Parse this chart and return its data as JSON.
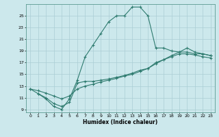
{
  "xlabel": "Humidex (Indice chaleur)",
  "background_color": "#cce8ec",
  "grid_color": "#aacdd4",
  "line_color": "#2d7a6e",
  "xlim": [
    -0.5,
    23.5
  ],
  "ylim": [
    8.5,
    27.0
  ],
  "yticks": [
    9,
    11,
    13,
    15,
    17,
    19,
    21,
    23,
    25
  ],
  "xticks": [
    0,
    1,
    2,
    3,
    4,
    5,
    6,
    7,
    8,
    9,
    10,
    11,
    12,
    13,
    14,
    15,
    16,
    17,
    18,
    19,
    20,
    21,
    22,
    23
  ],
  "line1_x": [
    0,
    1,
    2,
    3,
    4,
    5,
    6,
    7,
    8,
    9,
    10,
    11,
    12,
    13,
    14,
    15,
    16,
    17,
    18,
    19,
    20,
    21,
    22,
    23
  ],
  "line1_y": [
    12.5,
    11.7,
    10.8,
    9.5,
    9.0,
    10.8,
    14.0,
    18.0,
    20.0,
    22.0,
    24.0,
    25.0,
    25.0,
    26.5,
    26.5,
    25.0,
    19.5,
    19.5,
    19.0,
    18.8,
    18.8,
    18.5,
    18.5,
    18.2
  ],
  "line2_x": [
    1,
    2,
    3,
    4,
    5,
    6,
    7,
    8,
    9,
    10,
    11,
    12,
    13,
    14,
    15,
    16,
    17,
    18,
    19,
    20,
    21,
    22,
    23
  ],
  "line2_y": [
    11.7,
    11.0,
    10.0,
    9.5,
    10.2,
    13.5,
    13.8,
    13.8,
    14.0,
    14.2,
    14.5,
    14.8,
    15.2,
    15.7,
    16.0,
    17.0,
    17.5,
    18.2,
    18.8,
    19.5,
    18.8,
    18.5,
    18.2
  ],
  "line3_x": [
    0,
    1,
    2,
    3,
    4,
    5,
    6,
    7,
    8,
    9,
    10,
    11,
    12,
    13,
    14,
    15,
    16,
    17,
    18,
    19,
    20,
    21,
    22,
    23
  ],
  "line3_y": [
    12.5,
    12.2,
    11.8,
    11.3,
    10.8,
    11.3,
    12.5,
    13.0,
    13.3,
    13.7,
    14.0,
    14.3,
    14.7,
    15.0,
    15.5,
    16.0,
    16.8,
    17.5,
    18.0,
    18.5,
    18.5,
    18.3,
    18.0,
    17.8
  ]
}
